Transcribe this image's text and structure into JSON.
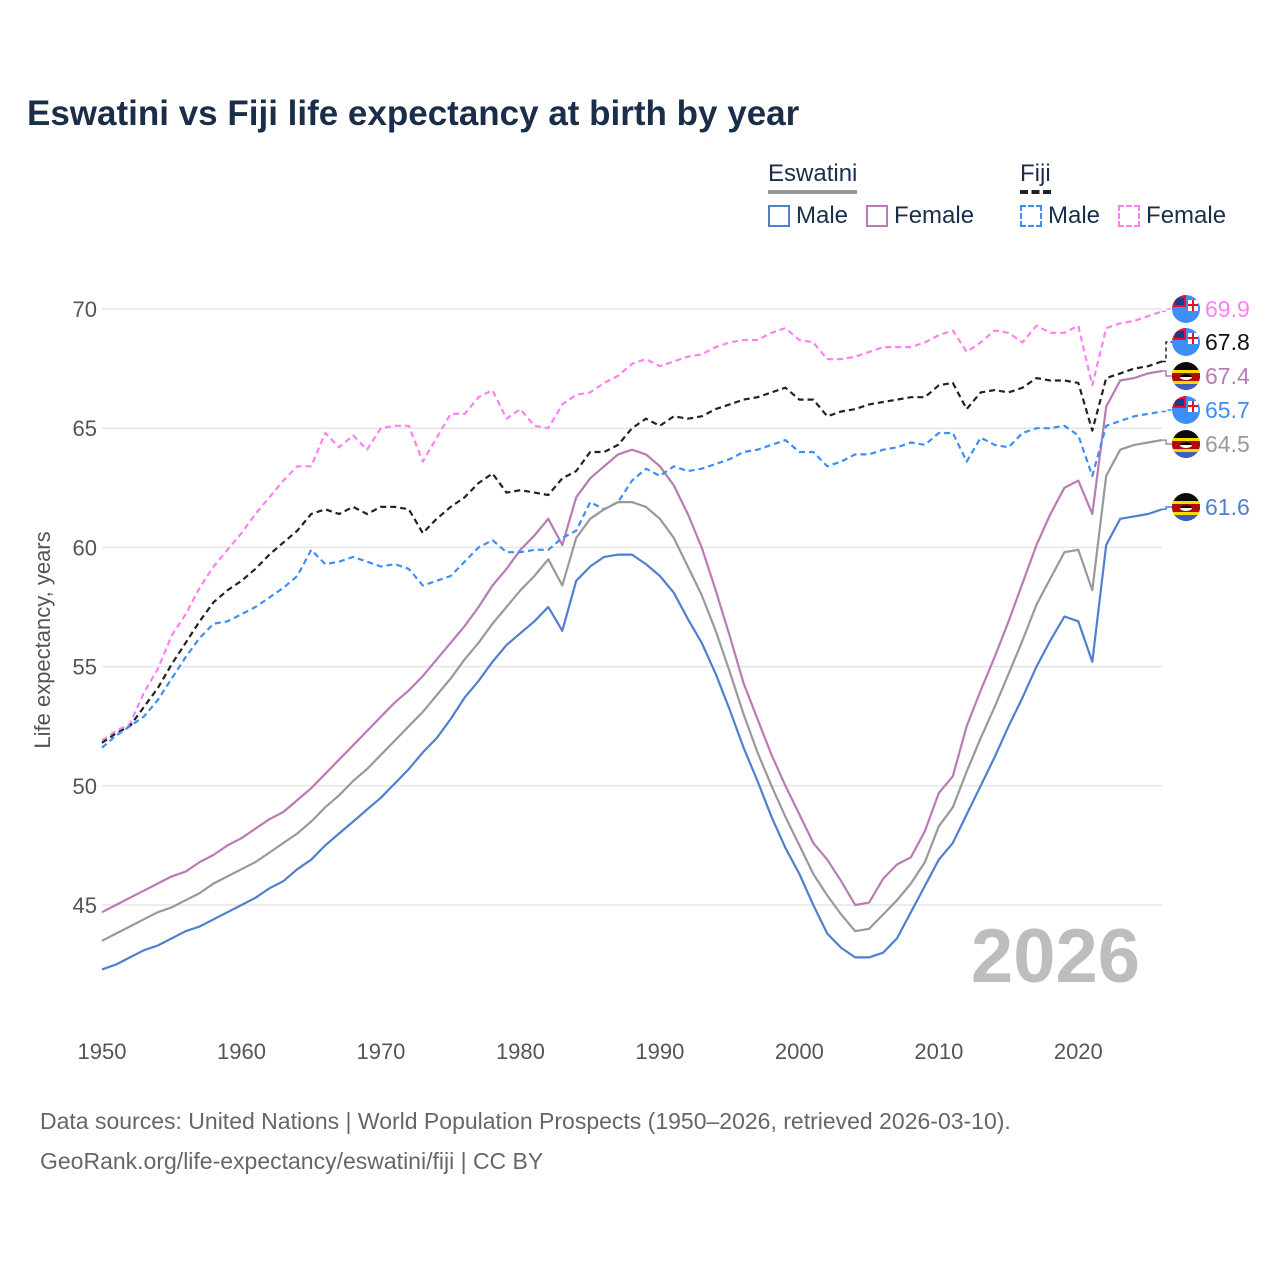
{
  "chart_data": {
    "type": "line",
    "title": "Eswatini vs Fiji life expectancy at birth by year",
    "xlabel": "",
    "ylabel": "Life expectancy, years",
    "xlim": [
      1950,
      2026
    ],
    "ylim": [
      41.5,
      71.5
    ],
    "x_ticks": [
      1950,
      1960,
      1970,
      1980,
      1990,
      2000,
      2010,
      2020
    ],
    "y_ticks": [
      45,
      50,
      55,
      60,
      65,
      70
    ],
    "grid": true,
    "year_watermark": "2026",
    "legend": {
      "placement": "top-right",
      "groups": [
        {
          "name": "Eswatini",
          "items": [
            "Male",
            "Female"
          ]
        },
        {
          "name": "Fiji",
          "items": [
            "Male",
            "Female"
          ]
        }
      ]
    },
    "x_start": 1950,
    "series": [
      {
        "name": "Fiji Female",
        "color": "#ff80f0",
        "dashed": true,
        "flag": "fiji",
        "end_label": "69.9",
        "values": [
          51.9,
          52.3,
          52.6,
          53.9,
          54.9,
          56.3,
          57.2,
          58.3,
          59.2,
          59.9,
          60.6,
          61.4,
          62.1,
          62.8,
          63.4,
          63.4,
          64.8,
          64.2,
          64.7,
          64.1,
          65.0,
          65.1,
          65.1,
          63.6,
          64.6,
          65.6,
          65.6,
          66.3,
          66.6,
          65.4,
          65.8,
          65.1,
          65.0,
          66.0,
          66.4,
          66.5,
          66.9,
          67.2,
          67.7,
          67.9,
          67.6,
          67.8,
          68.0,
          68.1,
          68.4,
          68.6,
          68.7,
          68.7,
          69.0,
          69.2,
          68.7,
          68.6,
          67.9,
          67.9,
          68.0,
          68.2,
          68.4,
          68.4,
          68.4,
          68.6,
          68.9,
          69.1,
          68.2,
          68.6,
          69.1,
          69.0,
          68.6,
          69.3,
          69.0,
          69.0,
          69.3,
          66.8,
          69.2,
          69.4,
          69.5,
          69.7,
          69.9
        ]
      },
      {
        "name": "Fiji",
        "color": "#222222",
        "dashed": true,
        "flag": "fiji",
        "end_label": "67.8",
        "values": [
          51.8,
          52.2,
          52.5,
          53.3,
          54.1,
          55.1,
          56.0,
          56.9,
          57.7,
          58.2,
          58.6,
          59.1,
          59.7,
          60.2,
          60.7,
          61.4,
          61.6,
          61.4,
          61.7,
          61.4,
          61.7,
          61.7,
          61.6,
          60.6,
          61.2,
          61.7,
          62.1,
          62.7,
          63.1,
          62.3,
          62.4,
          62.3,
          62.2,
          62.9,
          63.2,
          64.0,
          64.0,
          64.3,
          65.0,
          65.4,
          65.1,
          65.5,
          65.4,
          65.5,
          65.8,
          66.0,
          66.2,
          66.3,
          66.5,
          66.7,
          66.2,
          66.2,
          65.5,
          65.7,
          65.8,
          66.0,
          66.1,
          66.2,
          66.3,
          66.3,
          66.8,
          66.9,
          65.8,
          66.5,
          66.6,
          66.5,
          66.7,
          67.1,
          67.0,
          67.0,
          66.9,
          64.9,
          67.1,
          67.3,
          67.5,
          67.6,
          67.8
        ]
      },
      {
        "name": "Eswatini Female",
        "color": "#b97bb5",
        "dashed": false,
        "flag": "eswatini",
        "end_label": "67.4",
        "values": [
          44.7,
          45.0,
          45.3,
          45.6,
          45.9,
          46.2,
          46.4,
          46.8,
          47.1,
          47.5,
          47.8,
          48.2,
          48.6,
          48.9,
          49.4,
          49.9,
          50.5,
          51.1,
          51.7,
          52.3,
          52.9,
          53.5,
          54.0,
          54.6,
          55.3,
          56.0,
          56.7,
          57.5,
          58.4,
          59.1,
          59.9,
          60.5,
          61.2,
          60.1,
          62.1,
          62.9,
          63.4,
          63.9,
          64.1,
          63.9,
          63.4,
          62.6,
          61.4,
          60.0,
          58.2,
          56.3,
          54.3,
          52.8,
          51.3,
          50.0,
          48.8,
          47.6,
          46.9,
          46.0,
          45.0,
          45.1,
          46.1,
          46.7,
          47.0,
          48.1,
          49.7,
          50.4,
          52.5,
          54.0,
          55.4,
          56.9,
          58.5,
          60.1,
          61.4,
          62.5,
          62.8,
          61.4,
          65.9,
          67.0,
          67.1,
          67.3,
          67.4
        ]
      },
      {
        "name": "Fiji Male",
        "color": "#3d8ef5",
        "dashed": true,
        "flag": "fiji",
        "end_label": "65.7",
        "values": [
          51.6,
          52.1,
          52.5,
          52.9,
          53.6,
          54.5,
          55.4,
          56.2,
          56.8,
          56.9,
          57.2,
          57.5,
          57.9,
          58.3,
          58.8,
          59.9,
          59.3,
          59.4,
          59.6,
          59.4,
          59.2,
          59.3,
          59.1,
          58.4,
          58.6,
          58.8,
          59.4,
          60.0,
          60.3,
          59.8,
          59.8,
          59.9,
          59.9,
          60.4,
          60.7,
          61.9,
          61.6,
          61.9,
          62.8,
          63.3,
          63.0,
          63.4,
          63.2,
          63.3,
          63.5,
          63.7,
          64.0,
          64.1,
          64.3,
          64.5,
          64.0,
          64.0,
          63.4,
          63.6,
          63.9,
          63.9,
          64.1,
          64.2,
          64.4,
          64.3,
          64.8,
          64.8,
          63.6,
          64.6,
          64.3,
          64.2,
          64.8,
          65.0,
          65.0,
          65.1,
          64.7,
          63.0,
          65.1,
          65.3,
          65.5,
          65.6,
          65.7
        ]
      },
      {
        "name": "Eswatini",
        "color": "#999999",
        "dashed": false,
        "flag": "eswatini",
        "end_label": "64.5",
        "values": [
          43.5,
          43.8,
          44.1,
          44.4,
          44.7,
          44.9,
          45.2,
          45.5,
          45.9,
          46.2,
          46.5,
          46.8,
          47.2,
          47.6,
          48.0,
          48.5,
          49.1,
          49.6,
          50.2,
          50.7,
          51.3,
          51.9,
          52.5,
          53.1,
          53.8,
          54.5,
          55.3,
          56.0,
          56.8,
          57.5,
          58.2,
          58.8,
          59.5,
          58.4,
          60.4,
          61.2,
          61.6,
          61.9,
          61.9,
          61.7,
          61.2,
          60.4,
          59.2,
          58.0,
          56.5,
          54.8,
          53.0,
          51.4,
          50.0,
          48.7,
          47.5,
          46.3,
          45.4,
          44.6,
          43.9,
          44.0,
          44.6,
          45.2,
          45.9,
          46.8,
          48.3,
          49.1,
          50.6,
          52.0,
          53.3,
          54.7,
          56.1,
          57.6,
          58.7,
          59.8,
          59.9,
          58.2,
          63.0,
          64.1,
          64.3,
          64.4,
          64.5
        ]
      },
      {
        "name": "Eswatini Male",
        "color": "#4f7fcf",
        "dashed": false,
        "flag": "eswatini",
        "end_label": "61.6",
        "values": [
          42.3,
          42.5,
          42.8,
          43.1,
          43.3,
          43.6,
          43.9,
          44.1,
          44.4,
          44.7,
          45.0,
          45.3,
          45.7,
          46.0,
          46.5,
          46.9,
          47.5,
          48.0,
          48.5,
          49.0,
          49.5,
          50.1,
          50.7,
          51.4,
          52.0,
          52.8,
          53.7,
          54.4,
          55.2,
          55.9,
          56.4,
          56.9,
          57.5,
          56.5,
          58.6,
          59.2,
          59.6,
          59.7,
          59.7,
          59.3,
          58.8,
          58.1,
          57.0,
          56.0,
          54.7,
          53.2,
          51.6,
          50.2,
          48.7,
          47.4,
          46.3,
          45.0,
          43.8,
          43.2,
          42.8,
          42.8,
          43.0,
          43.6,
          44.7,
          45.8,
          46.9,
          47.6,
          48.8,
          50.0,
          51.2,
          52.5,
          53.7,
          55.0,
          56.1,
          57.1,
          56.9,
          55.2,
          60.1,
          61.2,
          61.3,
          61.4,
          61.6
        ]
      }
    ]
  },
  "legend": {
    "eswatini": {
      "title": "Eswatini",
      "male": "Male",
      "female": "Female",
      "line_color": "#999999",
      "male_color": "#4f7fcf",
      "female_color": "#b97bb5"
    },
    "fiji": {
      "title": "Fiji",
      "male": "Male",
      "female": "Female",
      "line_color": "#222222",
      "male_color": "#3d8ef5",
      "female_color": "#ff80f0"
    }
  },
  "footer": {
    "line1": "Data sources: United Nations | World Population Prospects (1950–2026, retrieved 2026-03-10).",
    "line2": "GeoRank.org/life-expectancy/eswatini/fiji | CC BY"
  }
}
